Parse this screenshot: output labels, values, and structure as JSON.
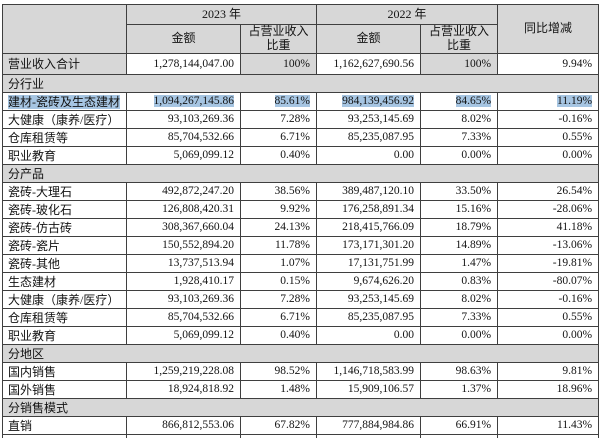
{
  "colors": {
    "header_bg": "#d7d7d7",
    "section_bg": "#d7d7d7",
    "shaded_cell_bg": "#d7d7d7",
    "selection_highlight": "#a6c5e2",
    "border": "#3f3f3f",
    "text": "#121212"
  },
  "table": {
    "header": {
      "corner_label": "",
      "year_2023": "2023 年",
      "year_2022": "2022 年",
      "amount_label": "金额",
      "share_label": "占营业收入比重",
      "yoy_label": "同比增减"
    },
    "rows": [
      {
        "type": "data",
        "variant": "summary",
        "label": "营业收入合计",
        "a2023": "1,278,144,047.00",
        "p2023": "100%",
        "a2022": "1,162,627,690.56",
        "p2022": "100%",
        "yoy": "9.94%"
      },
      {
        "type": "section",
        "label": "分行业"
      },
      {
        "type": "data",
        "variant": "selected",
        "label": "建材-瓷砖及生态建材",
        "a2023": "1,094,267,145.86",
        "p2023": "85.61%",
        "a2022": "984,139,456.92",
        "p2022": "84.65%",
        "yoy": "11.19%"
      },
      {
        "type": "data",
        "variant": "normal",
        "label": "大健康（康养/医疗）",
        "a2023": "93,103,269.36",
        "p2023": "7.28%",
        "a2022": "93,253,145.69",
        "p2022": "8.02%",
        "yoy": "-0.16%"
      },
      {
        "type": "data",
        "variant": "normal",
        "label": "仓库租赁等",
        "a2023": "85,704,532.66",
        "p2023": "6.71%",
        "a2022": "85,235,087.95",
        "p2022": "7.33%",
        "yoy": "0.55%"
      },
      {
        "type": "data",
        "variant": "normal",
        "label": "职业教育",
        "a2023": "5,069,099.12",
        "p2023": "0.40%",
        "a2022": "0.00",
        "p2022": "0.00%",
        "yoy": "0.00%"
      },
      {
        "type": "section",
        "label": "分产品"
      },
      {
        "type": "data",
        "variant": "normal",
        "label": "瓷砖-大理石",
        "a2023": "492,872,247.20",
        "p2023": "38.56%",
        "a2022": "389,487,120.10",
        "p2022": "33.50%",
        "yoy": "26.54%"
      },
      {
        "type": "data",
        "variant": "normal",
        "label": "瓷砖-玻化石",
        "a2023": "126,808,420.31",
        "p2023": "9.92%",
        "a2022": "176,258,891.34",
        "p2022": "15.16%",
        "yoy": "-28.06%"
      },
      {
        "type": "data",
        "variant": "normal",
        "label": "瓷砖-仿古砖",
        "a2023": "308,367,660.04",
        "p2023": "24.13%",
        "a2022": "218,415,766.09",
        "p2022": "18.79%",
        "yoy": "41.18%"
      },
      {
        "type": "data",
        "variant": "normal",
        "label": "瓷砖-瓷片",
        "a2023": "150,552,894.20",
        "p2023": "11.78%",
        "a2022": "173,171,301.20",
        "p2022": "14.89%",
        "yoy": "-13.06%"
      },
      {
        "type": "data",
        "variant": "normal",
        "label": "瓷砖-其他",
        "a2023": "13,737,513.94",
        "p2023": "1.07%",
        "a2022": "17,131,751.99",
        "p2022": "1.47%",
        "yoy": "-19.81%"
      },
      {
        "type": "data",
        "variant": "normal",
        "label": "生态建材",
        "a2023": "1,928,410.17",
        "p2023": "0.15%",
        "a2022": "9,674,626.20",
        "p2022": "0.83%",
        "yoy": "-80.07%"
      },
      {
        "type": "data",
        "variant": "normal",
        "label": "大健康（康养/医疗）",
        "a2023": "93,103,269.36",
        "p2023": "7.28%",
        "a2022": "93,253,145.69",
        "p2022": "8.02%",
        "yoy": "-0.16%"
      },
      {
        "type": "data",
        "variant": "normal",
        "label": "仓库租赁等",
        "a2023": "85,704,532.66",
        "p2023": "6.71%",
        "a2022": "85,235,087.95",
        "p2022": "7.33%",
        "yoy": "0.55%"
      },
      {
        "type": "data",
        "variant": "normal",
        "label": "职业教育",
        "a2023": "5,069,099.12",
        "p2023": "0.40%",
        "a2022": "0.00",
        "p2022": "0.00%",
        "yoy": "0.00%"
      },
      {
        "type": "section",
        "label": "分地区"
      },
      {
        "type": "data",
        "variant": "normal",
        "label": "国内销售",
        "a2023": "1,259,219,228.08",
        "p2023": "98.52%",
        "a2022": "1,146,718,583.99",
        "p2022": "98.63%",
        "yoy": "9.81%"
      },
      {
        "type": "data",
        "variant": "normal",
        "label": "国外销售",
        "a2023": "18,924,818.92",
        "p2023": "1.48%",
        "a2022": "15,909,106.57",
        "p2022": "1.37%",
        "yoy": "18.96%"
      },
      {
        "type": "section",
        "label": "分销售模式"
      },
      {
        "type": "data",
        "variant": "normal",
        "label": "直销",
        "a2023": "866,812,553.06",
        "p2023": "67.82%",
        "a2022": "777,884,984.86",
        "p2022": "66.91%",
        "yoy": "11.43%"
      }
    ]
  }
}
